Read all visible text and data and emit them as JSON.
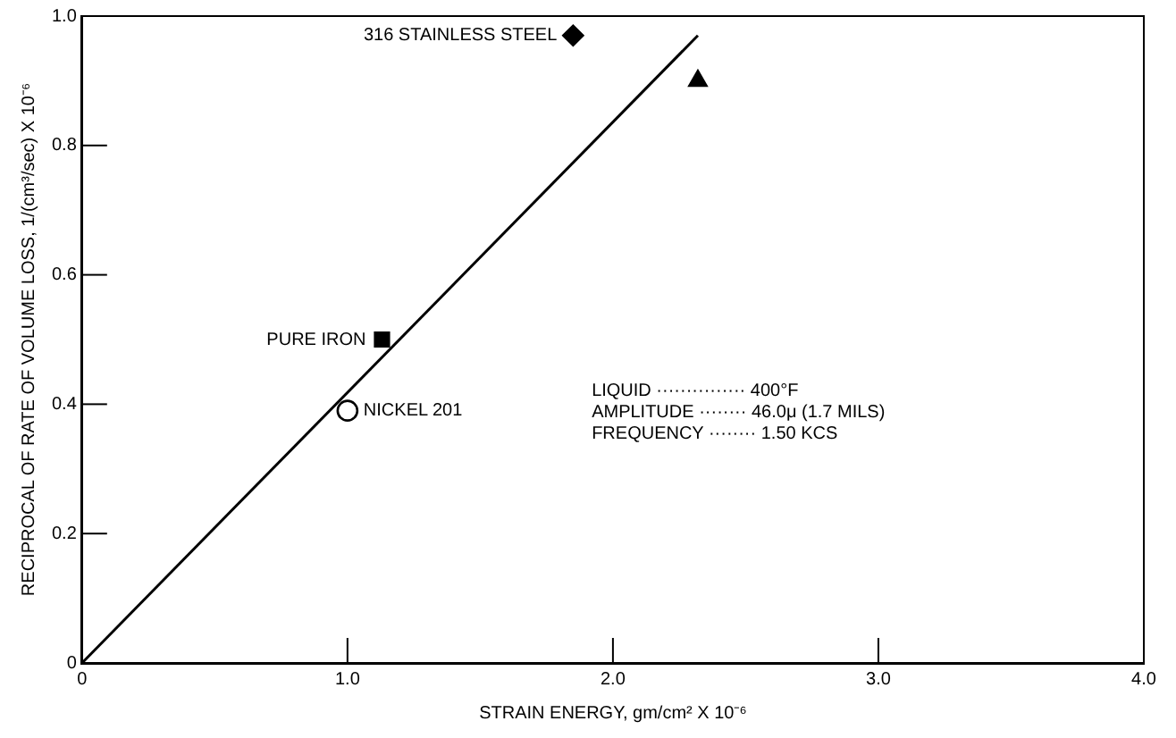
{
  "chart_data": {
    "type": "scatter",
    "xlabel": "STRAIN ENERGY, gm/cm² X 10⁻⁶",
    "ylabel": "RECIPROCAL OF RATE OF VOLUME LOSS, 1/(cm³/sec) X 10⁻⁶",
    "xlim": [
      0,
      4
    ],
    "xticks": [
      0,
      {
        "value": 1,
        "label": "1.0"
      },
      {
        "value": 2,
        "label": "2.0"
      },
      {
        "value": 3,
        "label": "3.0"
      },
      {
        "value": 4,
        "label": "4.0"
      }
    ],
    "ylim": [
      0,
      1
    ],
    "yticks": [
      0,
      0.2,
      0.4,
      0.6,
      0.8,
      {
        "value": 1,
        "label": "1.0"
      }
    ],
    "series": [
      {
        "type": "line",
        "x": [
          0,
          2.32
        ],
        "values": [
          0,
          0.97
        ],
        "marker": "none",
        "color": "#000000"
      },
      {
        "x": [
          1.85
        ],
        "values": [
          0.97
        ],
        "marker": "diamond",
        "color": "#000000"
      },
      {
        "x": [
          2.32
        ],
        "values": [
          0.9
        ],
        "marker": "triangle",
        "color": "#000000"
      },
      {
        "x": [
          1.13
        ],
        "values": [
          0.5
        ],
        "marker": "square",
        "color": "#000000"
      },
      {
        "x": [
          1.0
        ],
        "values": [
          0.39
        ],
        "marker": "circle",
        "color": "#000000"
      }
    ],
    "annotations": [
      {
        "text": "316 STAINLESS STEEL",
        "x": 1.85,
        "y": 0.97
      },
      {
        "text": "PURE IRON",
        "x": 1.13,
        "y": 0.5
      },
      {
        "text": "NICKEL 201",
        "x": 1.0,
        "y": 0.39
      },
      "LIQUID ··············· 400°F",
      "AMPLITUDE ········ 46.0μ (1.7 MILS)",
      "FREQUENCY ········ 1.50 KCS"
    ]
  }
}
